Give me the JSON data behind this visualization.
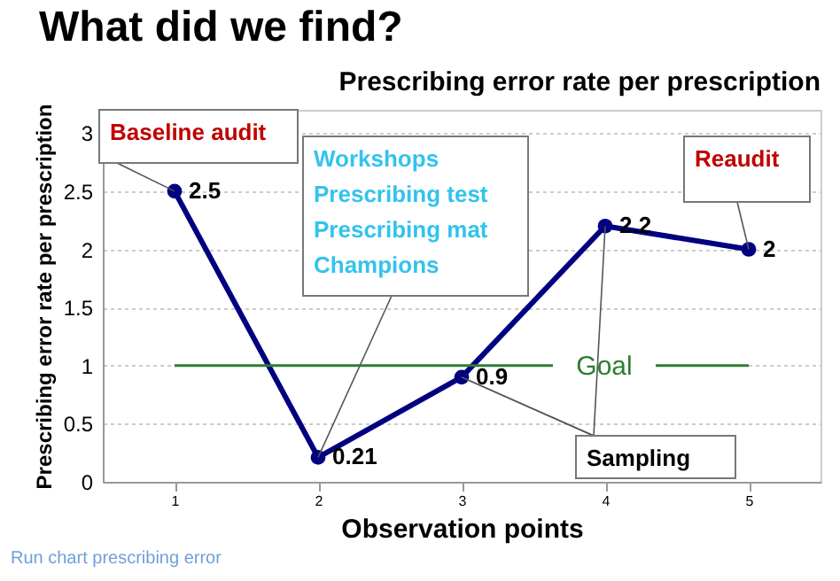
{
  "chart_data": {
    "type": "line",
    "title": "What did we find?",
    "subtitle": "Prescribing error rate per prescription",
    "categories": [
      "1",
      "2",
      "3",
      "4",
      "5"
    ],
    "series": [
      {
        "color": "#000080",
        "values": [
          2.5,
          0.21,
          0.9,
          2.2,
          2
        ]
      }
    ],
    "xlabel": "Observation points",
    "ylabel": "Prescribing error  rate per prescription",
    "ylim": [
      0,
      3.2
    ],
    "yticks": [
      0,
      0.5,
      1,
      1.5,
      2,
      2.5,
      3
    ],
    "grid": "y",
    "marker": "circle",
    "line_style": "solid",
    "data_labels": true,
    "ref_lines": [
      {
        "axis": "y",
        "value": 1,
        "label": "Goal",
        "color": "#2e7d32"
      }
    ],
    "annotations": [
      {
        "text": "Baseline audit",
        "x": "1",
        "y": 2.5
      },
      {
        "text": "Workshops\nPrescribing test\nPrescribing mat\nChampions",
        "x": "2",
        "y": 0.21
      },
      "Reaudit",
      {
        "text": "Sampling",
        "x": "3",
        "y": 0.9
      },
      "Run chart prescribing error"
    ]
  }
}
